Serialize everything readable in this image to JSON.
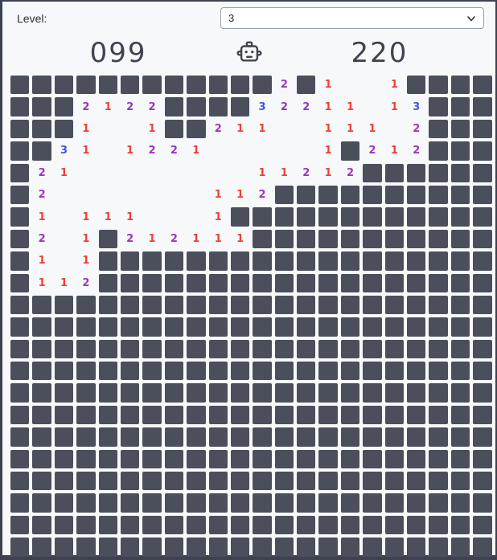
{
  "header": {
    "level_label": "Level:",
    "level_value": "3"
  },
  "status": {
    "mines_counter": "099",
    "timer_counter": "220"
  },
  "board": {
    "rows": 22,
    "cols": 22,
    "cell_legend": "C=covered square, .=revealed empty, digits=revealed number",
    "cells": [
      "CCCCCCCCCCCC2C1..1CCCC",
      "CCC2122CCCC32211.13CCC",
      "CCC1..1CC211..111.2CCC",
      "CC31.1221.....1C212CCC",
      "C21........11212CCCCCC",
      "C2.......112CCCCCCCCCC",
      "C1.111...1CCCCCCCCCCCC",
      "C2.1C212111CCCCCCCCCCC",
      "C1.1CCCCCCCCCCCCCCCCCC",
      "C112CCCCCCCCCCCCCCCCCC",
      "CCCCCCCCCCCCCCCCCCCCCC",
      "CCCCCCCCCCCCCCCCCCCCCC",
      "CCCCCCCCCCCCCCCCCCCCCC",
      "CCCCCCCCCCCCCCCCCCCCCC",
      "CCCCCCCCCCCCCCCCCCCCCC",
      "CCCCCCCCCCCCCCCCCCCCCC",
      "CCCCCCCCCCCCCCCCCCCCCC",
      "CCCCCCCCCCCCCCCCCCCCCC",
      "CCCCCCCCCCCCCCCCCCCCCC",
      "CCCCCCCCCCCCCCCCCCCCCC",
      "CCCCCCCCCCCCCCCCCCCCCC",
      "CCCCCCCCCCCCCCCCCCCCCC"
    ]
  },
  "colors": {
    "background": "#f7f8fa",
    "frame": "#3d4250",
    "covered_square": "#4a4f5b",
    "counter_text": "#3f4450",
    "number_1": "#ee4035",
    "number_2": "#9a36bb",
    "number_3": "#4355db"
  }
}
